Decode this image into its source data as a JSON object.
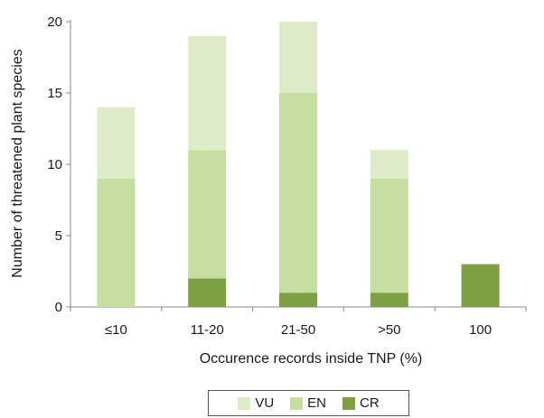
{
  "chart_data": {
    "type": "bar",
    "stacked": true,
    "categories": [
      "≤10",
      "11-20",
      "21-50",
      ">50",
      "100"
    ],
    "series": [
      {
        "name": "CR",
        "color": "#7f9f45",
        "values": [
          0,
          2,
          1,
          1,
          3
        ]
      },
      {
        "name": "EN",
        "color": "#c6dea2",
        "values": [
          9,
          9,
          14,
          8,
          0
        ]
      },
      {
        "name": "VU",
        "color": "#deebc9",
        "values": [
          5,
          8,
          5,
          2,
          0
        ]
      }
    ],
    "totals": [
      14,
      19,
      20,
      11,
      3
    ],
    "title": "",
    "xlabel": "Occurence records inside TNP (%)",
    "ylabel": "Number of threatened plant species",
    "ylim": [
      0,
      20
    ],
    "yticks": [
      0,
      5,
      10,
      15,
      20
    ],
    "grid": false,
    "legend_position": "bottom",
    "legend_order": [
      "VU",
      "EN",
      "CR"
    ]
  }
}
